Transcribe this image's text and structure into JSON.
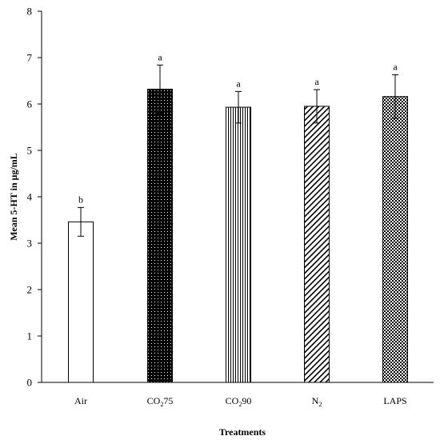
{
  "chart_data": {
    "type": "bar",
    "categories": [
      "Air",
      "CO₂75",
      "CO₂90",
      "N₂",
      "LAPS"
    ],
    "category_labels": [
      {
        "main": "Air",
        "sub": "",
        "suffix": ""
      },
      {
        "main": "CO",
        "sub": "2",
        "suffix": "75"
      },
      {
        "main": "CO",
        "sub": "2",
        "suffix": "90"
      },
      {
        "main": "N",
        "sub": "2",
        "suffix": ""
      },
      {
        "main": "LAPS",
        "sub": "",
        "suffix": ""
      }
    ],
    "values": [
      3.46,
      6.32,
      5.93,
      5.95,
      6.16
    ],
    "error": [
      0.31,
      0.52,
      0.34,
      0.36,
      0.47
    ],
    "significance_letters": [
      "b",
      "a",
      "a",
      "a",
      "a"
    ],
    "patterns": [
      "white",
      "dark-dots",
      "vertical-lines",
      "diagonal-lines",
      "crosshatch"
    ],
    "xlabel": "Treatments",
    "ylabel": "Mean 5-HT in μg/mL",
    "ylim": [
      0,
      8
    ],
    "yticks": [
      0,
      1,
      2,
      3,
      4,
      5,
      6,
      7,
      8
    ],
    "grid": false,
    "legend": "none"
  }
}
